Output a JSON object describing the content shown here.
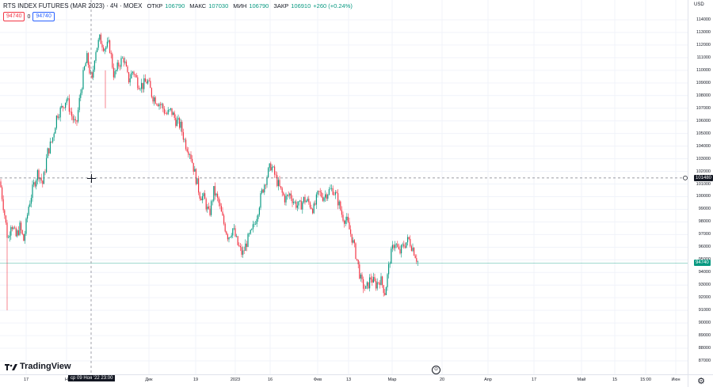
{
  "legend": {
    "title": "RTS INDEX FUTURES (MAR 2023) · 4Ч · MOEX",
    "open_label": "ОТКР",
    "open": "106790",
    "high_label": "МАКС",
    "high": "107030",
    "low_label": "МИН",
    "low": "106790",
    "close_label": "ЗАКР",
    "close": "106910",
    "change": "+260 (+0.24%)"
  },
  "pills": {
    "sell": "94740",
    "spread": "0",
    "buy": "94740"
  },
  "currency": "USD",
  "price_ticks": [
    "114000",
    "113000",
    "112000",
    "111000",
    "110000",
    "109000",
    "108000",
    "107000",
    "106000",
    "105000",
    "104000",
    "103000",
    "102000",
    "101000",
    "100000",
    "99000",
    "98000",
    "97000",
    "96000",
    "95000",
    "94000",
    "93000",
    "92000",
    "91000",
    "90000",
    "89000",
    "88000",
    "87000"
  ],
  "time_ticks": [
    {
      "label": "17"
    },
    {
      "label": "Н"
    },
    {
      "label": "Дек"
    },
    {
      "label": "19"
    },
    {
      "label": "2023"
    },
    {
      "label": "16"
    },
    {
      "label": "Фев"
    },
    {
      "label": "13"
    },
    {
      "label": "Мар"
    },
    {
      "label": "20"
    },
    {
      "label": "Апр"
    },
    {
      "label": "17"
    },
    {
      "label": "Май"
    },
    {
      "label": "15"
    },
    {
      "label": "15:00"
    },
    {
      "label": "Июн"
    }
  ],
  "crosshair": {
    "time_label": "ср 09 Ноя '22  23:00",
    "price_label": "101480"
  },
  "last_price_label": "94740",
  "brand": "TradingView",
  "colors": {
    "up": "#089981",
    "down": "#f23645",
    "text": "#131722",
    "grid": "#f0f3fa"
  },
  "chart_data": {
    "type": "candlestick",
    "y_range": [
      86500,
      114600
    ],
    "last_price": 94740,
    "crosshair_price": 101480,
    "close_path": [
      {
        "x": 0,
        "y": 101200
      },
      {
        "x": 6,
        "y": 98500
      },
      {
        "x": 10,
        "y": 96500
      },
      {
        "x": 14,
        "y": 98000
      },
      {
        "x": 20,
        "y": 96800
      },
      {
        "x": 25,
        "y": 97600
      },
      {
        "x": 30,
        "y": 96500
      },
      {
        "x": 36,
        "y": 99200
      },
      {
        "x": 42,
        "y": 100800
      },
      {
        "x": 48,
        "y": 102000
      },
      {
        "x": 54,
        "y": 101000
      },
      {
        "x": 60,
        "y": 103500
      },
      {
        "x": 66,
        "y": 104500
      },
      {
        "x": 72,
        "y": 106500
      },
      {
        "x": 78,
        "y": 107000
      },
      {
        "x": 84,
        "y": 107800
      },
      {
        "x": 90,
        "y": 106500
      },
      {
        "x": 96,
        "y": 105500
      },
      {
        "x": 100,
        "y": 107500
      },
      {
        "x": 106,
        "y": 110000
      },
      {
        "x": 110,
        "y": 111000
      },
      {
        "x": 116,
        "y": 109000
      },
      {
        "x": 120,
        "y": 111500
      },
      {
        "x": 126,
        "y": 112500
      },
      {
        "x": 132,
        "y": 111800
      },
      {
        "x": 138,
        "y": 112000
      },
      {
        "x": 144,
        "y": 109500
      },
      {
        "x": 150,
        "y": 110500
      },
      {
        "x": 156,
        "y": 111000
      },
      {
        "x": 162,
        "y": 109200
      },
      {
        "x": 168,
        "y": 110000
      },
      {
        "x": 174,
        "y": 109000
      },
      {
        "x": 180,
        "y": 108800
      },
      {
        "x": 186,
        "y": 109200
      },
      {
        "x": 192,
        "y": 108000
      },
      {
        "x": 198,
        "y": 107600
      },
      {
        "x": 204,
        "y": 107200
      },
      {
        "x": 210,
        "y": 106500
      },
      {
        "x": 216,
        "y": 106800
      },
      {
        "x": 222,
        "y": 106000
      },
      {
        "x": 228,
        "y": 105600
      },
      {
        "x": 234,
        "y": 104200
      },
      {
        "x": 240,
        "y": 103500
      },
      {
        "x": 246,
        "y": 101800
      },
      {
        "x": 252,
        "y": 100200
      },
      {
        "x": 258,
        "y": 99800
      },
      {
        "x": 264,
        "y": 98500
      },
      {
        "x": 270,
        "y": 100500
      },
      {
        "x": 276,
        "y": 99500
      },
      {
        "x": 282,
        "y": 98000
      },
      {
        "x": 288,
        "y": 96800
      },
      {
        "x": 294,
        "y": 97500
      },
      {
        "x": 300,
        "y": 96200
      },
      {
        "x": 306,
        "y": 95400
      },
      {
        "x": 312,
        "y": 96500
      },
      {
        "x": 318,
        "y": 97200
      },
      {
        "x": 324,
        "y": 98500
      },
      {
        "x": 330,
        "y": 100200
      },
      {
        "x": 336,
        "y": 101500
      },
      {
        "x": 342,
        "y": 102500
      },
      {
        "x": 348,
        "y": 101500
      },
      {
        "x": 354,
        "y": 100500
      },
      {
        "x": 360,
        "y": 99800
      },
      {
        "x": 366,
        "y": 100200
      },
      {
        "x": 372,
        "y": 99500
      },
      {
        "x": 378,
        "y": 99200
      },
      {
        "x": 384,
        "y": 99800
      },
      {
        "x": 390,
        "y": 99500
      },
      {
        "x": 396,
        "y": 99000
      },
      {
        "x": 402,
        "y": 100300
      },
      {
        "x": 408,
        "y": 100000
      },
      {
        "x": 414,
        "y": 100400
      },
      {
        "x": 420,
        "y": 100600
      },
      {
        "x": 426,
        "y": 99800
      },
      {
        "x": 432,
        "y": 98500
      },
      {
        "x": 438,
        "y": 98000
      },
      {
        "x": 444,
        "y": 96800
      },
      {
        "x": 450,
        "y": 95200
      },
      {
        "x": 456,
        "y": 93200
      },
      {
        "x": 462,
        "y": 92600
      },
      {
        "x": 468,
        "y": 93600
      },
      {
        "x": 474,
        "y": 93000
      },
      {
        "x": 480,
        "y": 93500
      },
      {
        "x": 486,
        "y": 92400
      },
      {
        "x": 492,
        "y": 95000
      },
      {
        "x": 498,
        "y": 96500
      },
      {
        "x": 504,
        "y": 95500
      },
      {
        "x": 510,
        "y": 96200
      },
      {
        "x": 516,
        "y": 96600
      },
      {
        "x": 522,
        "y": 95800
      },
      {
        "x": 528,
        "y": 94740
      }
    ]
  }
}
